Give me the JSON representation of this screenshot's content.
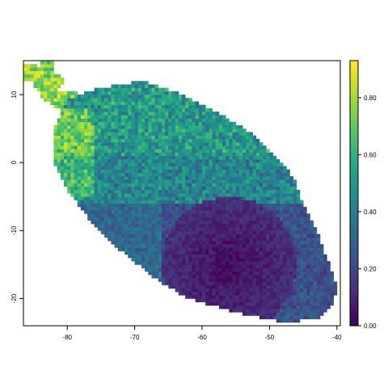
{
  "chart_data": {
    "type": "heatmap",
    "title": "",
    "xlabel": "",
    "ylabel": "",
    "xlim": [
      -86.5,
      -39.5
    ],
    "ylim": [
      -24,
      15
    ],
    "x_ticks": [
      -80,
      -70,
      -60,
      -50,
      -40
    ],
    "x_tick_labels": [
      "-80",
      "-70",
      "-60",
      "-50",
      "-40"
    ],
    "y_ticks": [
      -20,
      -10,
      0,
      10
    ],
    "y_tick_labels": [
      "-20",
      "-10",
      "0",
      "10"
    ],
    "grid": false,
    "colorscale": "viridis",
    "value_range": [
      0.0,
      0.93
    ],
    "colorbar_ticks": [
      0.0,
      0.2,
      0.4,
      0.6,
      0.8
    ],
    "colorbar_tick_labels": [
      "0.00",
      "0.20",
      "0.40",
      "0.60",
      "0.80"
    ],
    "colors": [
      "#440154",
      "#3b528b",
      "#21908c",
      "#5dc863",
      "#fde725"
    ],
    "cell_size_degrees": 0.5,
    "region_summary": [
      {
        "area": "northwestern coastal strip",
        "value_level": "high (0.65-0.93)"
      },
      {
        "area": "northern interior",
        "value_level": "medium (0.30-0.60)"
      },
      {
        "area": "central band",
        "value_level": "medium (0.35-0.55)"
      },
      {
        "area": "southeastern interior",
        "value_level": "low (0.00-0.15)"
      },
      {
        "area": "southwestern margin",
        "value_level": "low-medium (0.20-0.40)"
      }
    ]
  }
}
